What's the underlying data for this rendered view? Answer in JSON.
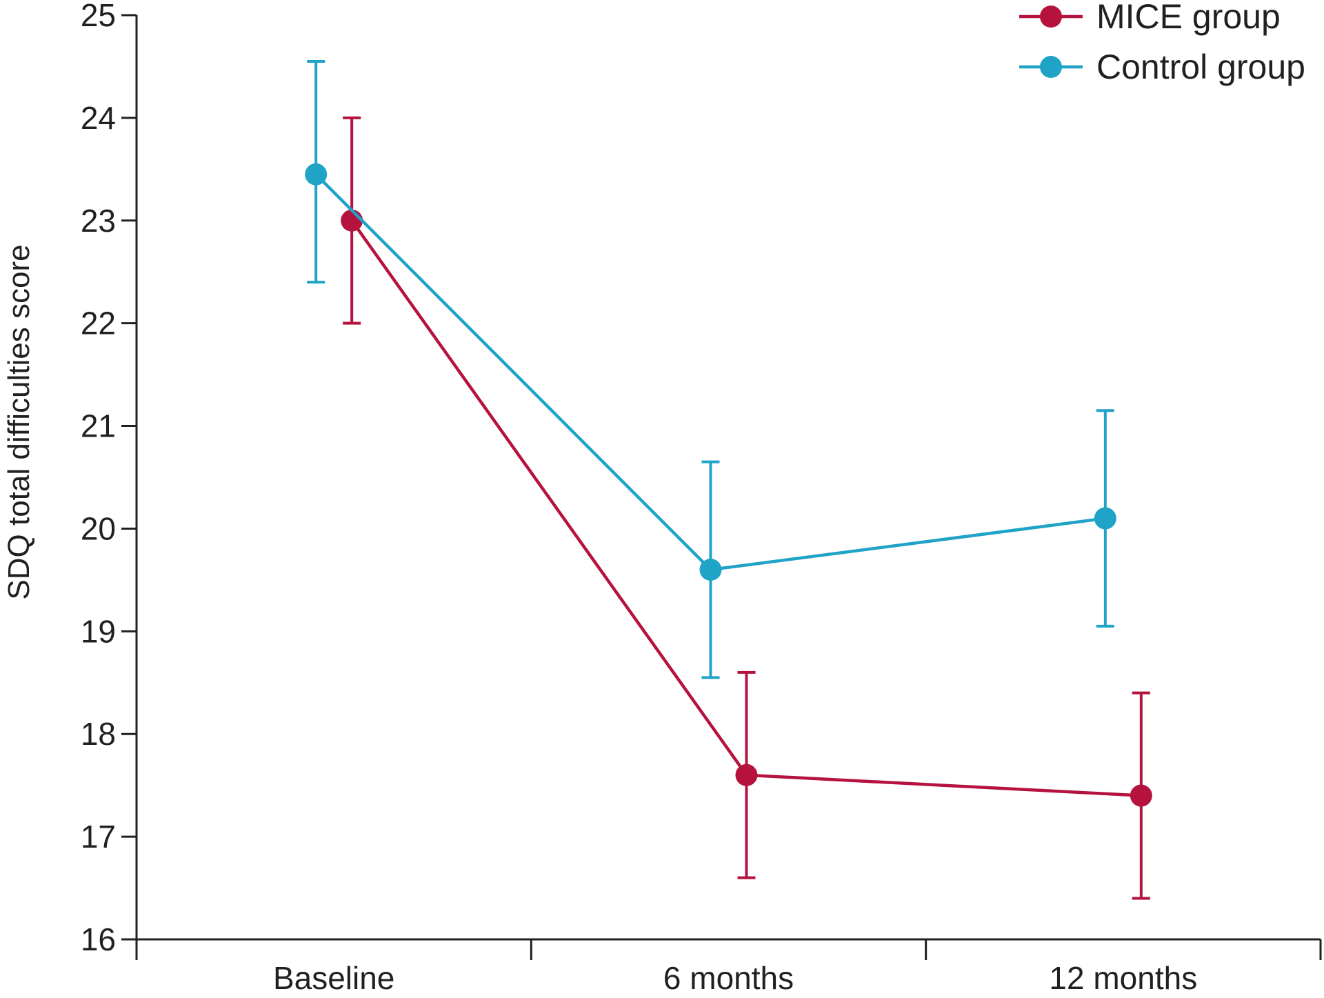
{
  "chart_data": {
    "type": "line",
    "title": "",
    "xlabel": "",
    "ylabel": "SDQ total difficulties score",
    "categories": [
      "Baseline",
      "6 months",
      "12 months"
    ],
    "ylim": [
      16,
      25
    ],
    "yticks": [
      "16",
      "17",
      "18",
      "19",
      "20",
      "21",
      "22",
      "23",
      "24",
      "25"
    ],
    "grid": false,
    "legend_position": "top-right",
    "series": [
      {
        "name": "MICE group",
        "color": "#b5123e",
        "values": [
          23.0,
          17.6,
          17.4
        ],
        "error_low": [
          22.0,
          16.6,
          16.4
        ],
        "error_high": [
          24.0,
          18.6,
          18.4
        ]
      },
      {
        "name": "Control group",
        "color": "#1fa3c7",
        "values": [
          23.45,
          19.6,
          20.1
        ],
        "error_low": [
          22.4,
          18.55,
          19.05
        ],
        "error_high": [
          24.55,
          20.65,
          21.15
        ]
      }
    ]
  }
}
